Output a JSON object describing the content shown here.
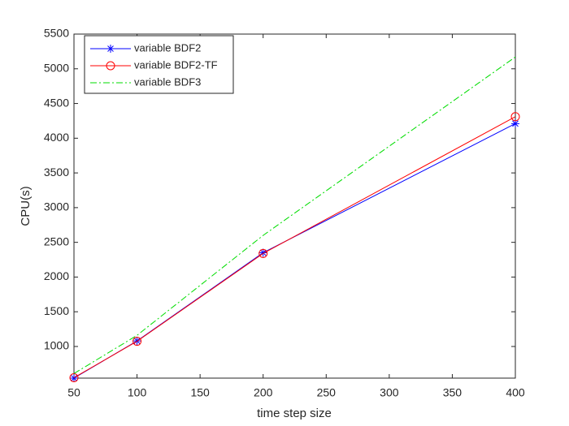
{
  "chart_data": {
    "type": "line",
    "xlabel": "time step size",
    "ylabel": "CPU(s)",
    "x": [
      50,
      100,
      200,
      400
    ],
    "series": [
      {
        "name": "variable BDF2",
        "color": "#0000ff",
        "marker": "asterisk",
        "linestyle": "solid",
        "values": [
          544,
          1080,
          2350,
          4210
        ]
      },
      {
        "name": "variable BDF2-TF",
        "color": "#ff0000",
        "marker": "circle",
        "linestyle": "solid",
        "values": [
          550,
          1075,
          2340,
          4310
        ]
      },
      {
        "name": "variable BDF3",
        "color": "#00dd00",
        "marker": "none",
        "linestyle": "dashdot",
        "values": [
          610,
          1160,
          2600,
          5170
        ]
      }
    ],
    "xlim": [
      50,
      400
    ],
    "xticks": [
      50,
      100,
      150,
      200,
      250,
      300,
      350,
      400
    ],
    "ylim": [
      544,
      5500
    ],
    "yticks": [
      1000,
      1500,
      2000,
      2500,
      3000,
      3500,
      4000,
      4500,
      5000,
      5500
    ],
    "legend": "upper left"
  }
}
